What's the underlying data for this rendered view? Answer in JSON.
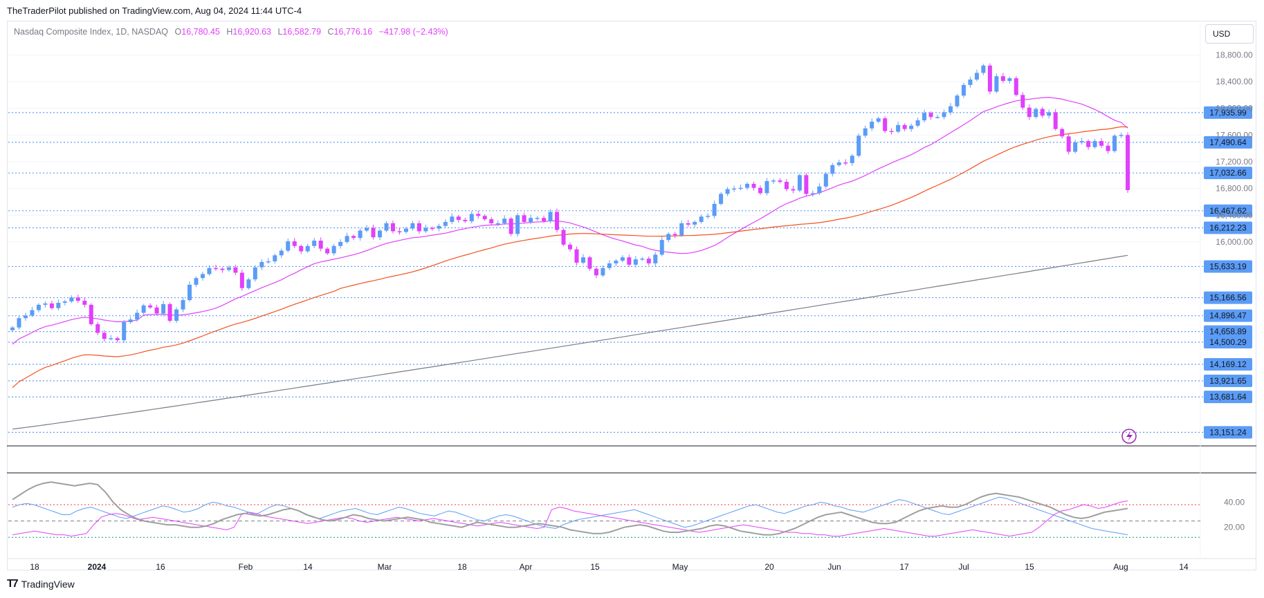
{
  "publisher": {
    "text": "TheTraderPilot published on TradingView.com, Aug 04, 2024 11:44 UTC-4"
  },
  "legend": {
    "symbol": "Nasdaq Composite Index, 1D, NASDAQ",
    "open_label": "O",
    "open": "16,780.45",
    "high_label": "H",
    "high": "16,920.63",
    "low_label": "L",
    "low": "16,582.79",
    "close_label": "C",
    "close": "16,776.16",
    "change": "−417.98 (−2.43%)"
  },
  "currency_button": "USD",
  "brand": {
    "name": "TradingView"
  },
  "colors": {
    "up": "#5b9cf6",
    "down": "#e040fb",
    "ma_fast": "#e040fb",
    "ma_mid": "#f4511e",
    "ma_slow": "#787b86",
    "level_line": "#5b9cf6",
    "label_bg": "#5b9cf6"
  },
  "chart_data": [
    {
      "type": "candlestick",
      "title": "",
      "y_axis_ticks": [
        "18,800.00",
        "18,400.00",
        "18,000.00",
        "17,600.00",
        "17,200.00",
        "16,800.00",
        "16,400.00",
        "16,000.00"
      ],
      "ylim": [
        13000,
        19000
      ],
      "x_axis_ticks": [
        "18",
        "2024",
        "16",
        "Feb",
        "14",
        "Mar",
        "18",
        "Apr",
        "15",
        "May",
        "20",
        "Jun",
        "17",
        "Jul",
        "15",
        "Aug",
        "14"
      ],
      "price_levels": [
        17935.99,
        17490.64,
        17032.66,
        16467.62,
        16212.23,
        15633.19,
        15166.56,
        14896.47,
        14658.89,
        14500.29,
        14169.12,
        13921.65,
        13681.64,
        13151.24
      ],
      "price_level_labels": [
        "17,935.99",
        "17,490.64",
        "17,032.66",
        "16,467.62",
        "16,212.23",
        "15,633.19",
        "15,166.56",
        "14,896.47",
        "14,658.89",
        "14,500.29",
        "14,169.12",
        "13,921.65",
        "13,681.64",
        "13,151.24"
      ],
      "candles_close": [
        14720,
        14860,
        14900,
        14980,
        15060,
        15080,
        15010,
        15090,
        15110,
        15170,
        15120,
        15060,
        14770,
        14640,
        14550,
        14560,
        14530,
        14800,
        14840,
        14940,
        15050,
        15020,
        14930,
        15070,
        14820,
        14990,
        15130,
        15360,
        15460,
        15520,
        15610,
        15600,
        15580,
        15620,
        15540,
        15310,
        15440,
        15620,
        15700,
        15710,
        15800,
        15870,
        16010,
        15940,
        15860,
        15940,
        16020,
        15900,
        15830,
        15940,
        16000,
        16090,
        16060,
        16170,
        16210,
        16070,
        16170,
        16280,
        16160,
        16150,
        16200,
        16280,
        16160,
        16210,
        16200,
        16240,
        16300,
        16380,
        16330,
        16310,
        16420,
        16390,
        16340,
        16280,
        16280,
        16350,
        16120,
        16400,
        16300,
        16360,
        16360,
        16310,
        16450,
        16180,
        15960,
        15890,
        15690,
        15770,
        15600,
        15500,
        15610,
        15680,
        15720,
        15770,
        15660,
        15740,
        15750,
        15680,
        15810,
        16030,
        16120,
        16100,
        16280,
        16260,
        16300,
        16380,
        16390,
        16570,
        16720,
        16790,
        16800,
        16810,
        16870,
        16810,
        16730,
        16910,
        16920,
        16900,
        16790,
        16770,
        17000,
        16720,
        16730,
        16830,
        17020,
        17150,
        17190,
        17180,
        17290,
        17590,
        17700,
        17800,
        17850,
        17660,
        17650,
        17750,
        17690,
        17740,
        17820,
        17930,
        17870,
        17870,
        17940,
        18030,
        18190,
        18350,
        18430,
        18530,
        18640,
        18250,
        18480,
        18410,
        18450,
        18200,
        18010,
        17870,
        17990,
        17890,
        17940,
        17690,
        17580,
        17350,
        17490,
        17510,
        17420,
        17510,
        17440,
        17360,
        17590,
        17600,
        16776
      ],
      "ma_fast_approx": "20-day MA (magenta)",
      "ma_mid_approx": "50-day MA (orange)",
      "ma_slow_approx": "200-day MA (gray)"
    },
    {
      "type": "line",
      "title": "",
      "y_axis_ticks": [
        "40.00",
        "20.00"
      ],
      "ylim": [
        5,
        60
      ],
      "reference_lines": [
        38,
        25,
        12
      ],
      "series": [
        {
          "values": [
            36,
            38,
            39,
            38,
            36,
            34,
            32,
            30,
            30,
            33,
            35,
            36,
            34,
            32,
            30,
            28,
            27,
            29,
            31,
            33,
            35,
            37,
            36,
            34,
            32,
            33,
            35,
            38,
            40,
            39,
            37,
            36,
            34,
            32,
            30,
            33,
            36,
            38,
            37,
            35,
            33,
            30,
            28,
            27,
            29,
            31,
            33,
            34,
            35,
            33,
            31,
            30,
            32,
            34,
            36,
            35,
            33,
            31,
            30,
            29,
            31,
            33,
            32,
            30,
            28,
            26,
            25,
            27,
            29,
            30,
            29,
            27,
            25,
            23,
            21,
            20,
            19,
            22,
            24,
            26,
            27,
            28,
            29,
            30,
            31,
            32,
            33,
            34,
            32,
            30,
            28,
            26,
            24,
            22,
            20,
            21,
            23,
            25,
            27,
            29,
            31,
            33,
            35,
            37,
            38,
            36,
            34,
            32,
            31,
            33,
            35,
            37,
            38,
            40,
            39,
            37,
            36,
            34,
            33,
            32,
            34,
            36,
            38,
            40,
            42,
            41,
            39,
            37,
            35,
            33,
            31,
            30,
            32,
            34,
            36,
            38,
            40,
            42,
            44,
            43,
            41,
            39,
            37,
            35,
            33,
            31,
            29,
            27,
            25,
            23,
            21,
            19,
            18,
            17,
            16,
            15,
            14
          ]
        },
        {
          "values": [
            14,
            15,
            16,
            17,
            16,
            15,
            14,
            14,
            13,
            14,
            15,
            22,
            28,
            30,
            31,
            30,
            28,
            26,
            27,
            28,
            27,
            26,
            25,
            24,
            23,
            22,
            21,
            20,
            19,
            18,
            20,
            30,
            32,
            31,
            29,
            28,
            27,
            26,
            25,
            24,
            23,
            24,
            25,
            26,
            27,
            28,
            27,
            25,
            24,
            25,
            26,
            27,
            28,
            27,
            26,
            25,
            26,
            27,
            26,
            25,
            24,
            23,
            22,
            21,
            22,
            23,
            24,
            23,
            22,
            21,
            20,
            19,
            20,
            34,
            36,
            35,
            33,
            32,
            31,
            30,
            29,
            28,
            27,
            26,
            25,
            24,
            23,
            22,
            21,
            20,
            19,
            18,
            17,
            16,
            17,
            18,
            19,
            20,
            21,
            22,
            21,
            20,
            19,
            18,
            17,
            16,
            16,
            15,
            15,
            14,
            14,
            13,
            13,
            14,
            15,
            16,
            17,
            18,
            19,
            18,
            17,
            16,
            15,
            14,
            13,
            13,
            14,
            15,
            16,
            17,
            18,
            17,
            16,
            15,
            14,
            13,
            14,
            15,
            16,
            20,
            25,
            30,
            33,
            34,
            36,
            38,
            37,
            35,
            36,
            38,
            40,
            41
          ]
        },
        {
          "values": [
            42,
            46,
            50,
            53,
            55,
            56,
            55,
            54,
            53,
            54,
            55,
            54,
            48,
            40,
            34,
            30,
            27,
            25,
            24,
            23,
            22,
            22,
            21,
            20,
            20,
            21,
            23,
            26,
            28,
            30,
            31,
            30,
            29,
            30,
            32,
            34,
            35,
            33,
            30,
            28,
            26,
            25,
            26,
            28,
            30,
            29,
            27,
            26,
            25,
            26,
            27,
            28,
            27,
            26,
            24,
            23,
            22,
            21,
            20,
            22,
            24,
            23,
            22,
            21,
            20,
            20,
            21,
            22,
            23,
            22,
            21,
            20,
            18,
            17,
            16,
            15,
            15,
            16,
            18,
            20,
            21,
            22,
            21,
            19,
            17,
            16,
            16,
            17,
            18,
            19,
            21,
            22,
            21,
            19,
            17,
            16,
            15,
            14,
            14,
            15,
            17,
            19,
            22,
            25,
            28,
            30,
            31,
            32,
            30,
            28,
            26,
            24,
            23,
            23,
            24,
            27,
            30,
            33,
            35,
            36,
            37,
            36,
            36,
            38,
            41,
            44,
            46,
            47,
            46,
            45,
            44,
            42,
            40,
            38,
            36,
            33,
            30,
            28,
            27,
            28,
            30,
            32,
            33,
            34,
            35
          ]
        }
      ]
    }
  ]
}
